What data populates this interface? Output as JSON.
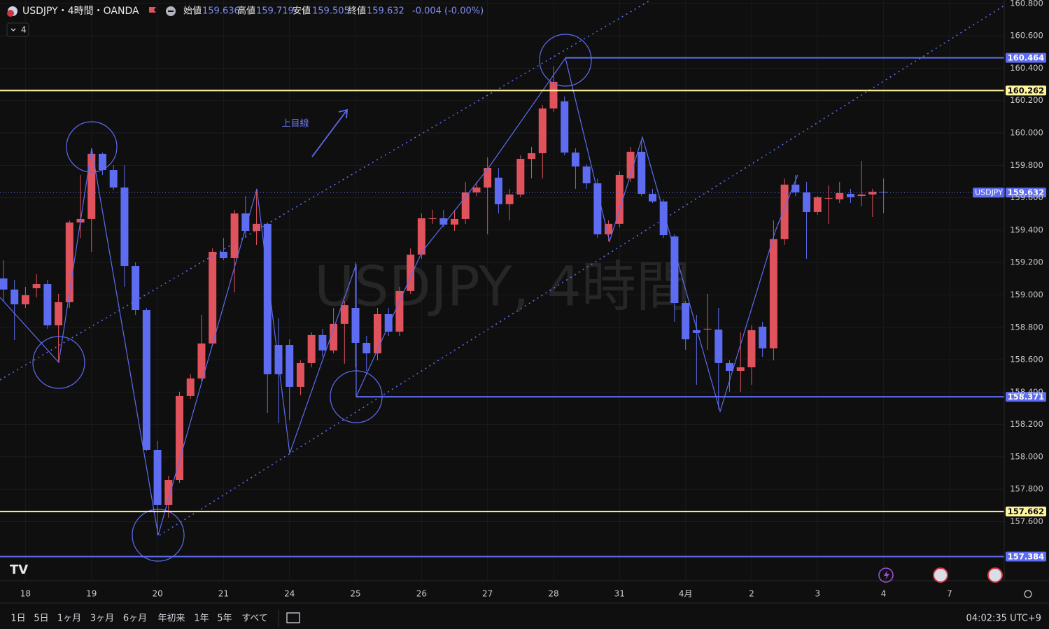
{
  "header": {
    "title": "USDJPY・4時間・OANDA",
    "interval_button": "4",
    "open_label": "始値",
    "high_label": "高値",
    "low_label": "安値",
    "close_label": "終値",
    "change": "-0.004 (-0.00%)"
  },
  "toolbar": {
    "ranges": [
      "1日",
      "5日",
      "1ヶ月",
      "3ヶ月",
      "6ヶ月",
      "年初来",
      "1年",
      "5年",
      "すべて"
    ],
    "clock": "04:02:35 UTC+9"
  },
  "chart_data": {
    "type": "candlestick",
    "symbol": "USDJPY",
    "watermark": "USDJPY, 4時間",
    "annotation": "上目線",
    "up_color": "#e0525c",
    "down_color": "#5d6cf0",
    "categories": [
      null,
      null,
      "18",
      null,
      null,
      null,
      null,
      null,
      "19",
      null,
      null,
      null,
      null,
      null,
      "20",
      null,
      null,
      null,
      null,
      null,
      "21",
      null,
      null,
      null,
      null,
      null,
      "24",
      null,
      null,
      null,
      null,
      null,
      "25",
      null,
      null,
      null,
      null,
      null,
      "26",
      null,
      null,
      null,
      null,
      null,
      "27",
      null,
      null,
      null,
      null,
      null,
      "28",
      null,
      null,
      null,
      null,
      null,
      "31",
      null,
      null,
      null,
      null,
      null,
      "4月",
      null,
      null,
      null,
      null,
      null,
      "2",
      null,
      null,
      null,
      null,
      null,
      "3",
      null,
      null,
      null,
      null,
      null,
      "4",
      null,
      null,
      null,
      null,
      null,
      "7"
    ],
    "open": [
      159.102,
      159.033,
      158.942,
      159.041,
      159.067,
      158.812,
      158.955,
      159.447,
      159.469,
      159.871,
      159.771,
      159.663,
      159.179,
      158.907,
      158.043,
      157.702,
      157.857,
      158.376,
      158.484,
      158.7,
      159.266,
      159.227,
      159.503,
      159.395,
      159.439,
      158.691,
      158.691,
      158.432,
      158.579,
      158.752,
      158.657,
      158.821,
      158.92,
      158.704,
      158.639,
      158.881,
      158.773,
      159.024,
      159.249,
      159.469,
      159.473,
      159.434,
      159.469,
      159.633,
      159.663,
      159.724,
      159.56,
      159.62,
      159.84,
      159.875,
      160.151,
      160.195,
      159.879,
      159.793,
      159.689,
      159.374,
      159.439,
      159.719,
      159.884,
      159.624,
      159.577,
      159.361,
      158.95,
      158.782,
      158.786,
      158.786,
      158.579,
      158.531,
      158.553,
      158.804,
      158.67,
      159.344,
      159.681,
      159.633,
      159.512,
      159.594,
      159.59,
      159.624,
      159.611,
      159.62,
      159.636,
      null,
      null,
      null,
      null,
      null,
      null
    ],
    "high": [
      159.214,
      159.093,
      159.05,
      159.128,
      159.093,
      159.007,
      159.46,
      159.741,
      159.905,
      159.879,
      159.801,
      159.801,
      159.201,
      158.92,
      158.099,
      157.883,
      158.402,
      158.51,
      158.877,
      159.287,
      159.352,
      159.525,
      159.611,
      159.655,
      159.447,
      158.855,
      158.726,
      158.596,
      158.769,
      158.791,
      158.92,
      158.963,
      159.201,
      158.747,
      158.92,
      158.92,
      159.05,
      159.287,
      159.503,
      159.525,
      159.525,
      159.525,
      159.698,
      159.698,
      159.849,
      159.784,
      159.655,
      159.862,
      159.914,
      160.173,
      160.411,
      160.225,
      159.905,
      159.806,
      159.719,
      159.46,
      159.763,
      159.914,
      159.957,
      159.655,
      159.59,
      159.374,
      158.963,
      158.877,
      159.007,
      158.92,
      158.596,
      158.769,
      158.812,
      158.834,
      159.46,
      159.719,
      159.741,
      159.698,
      159.611,
      159.676,
      159.698,
      159.655,
      159.827,
      159.655,
      159.719,
      null,
      null,
      null,
      null,
      null,
      null
    ],
    "low": [
      158.963,
      158.721,
      158.92,
      158.985,
      158.791,
      158.583,
      158.92,
      159.352,
      159.266,
      159.741,
      159.646,
      159.05,
      158.877,
      158.035,
      157.516,
      157.624,
      157.84,
      158.359,
      158.467,
      158.683,
      159.214,
      159.015,
      159.352,
      159.309,
      158.272,
      158.207,
      158.229,
      158.38,
      158.553,
      158.618,
      158.639,
      158.575,
      158.553,
      158.531,
      158.596,
      158.747,
      158.747,
      159.007,
      159.223,
      159.439,
      159.417,
      159.395,
      159.439,
      159.611,
      159.374,
      159.503,
      159.46,
      159.603,
      159.719,
      159.719,
      160.13,
      159.862,
      159.655,
      159.655,
      159.352,
      159.331,
      159.417,
      159.698,
      159.611,
      159.568,
      159.352,
      158.834,
      158.661,
      158.445,
      158.661,
      158.294,
      158.402,
      158.402,
      158.445,
      158.618,
      158.596,
      159.309,
      159.611,
      159.223,
      159.495,
      159.439,
      159.568,
      159.568,
      159.547,
      159.482,
      159.505,
      null,
      null,
      null,
      null,
      null,
      null
    ],
    "close": [
      159.033,
      158.942,
      158.998,
      159.067,
      158.812,
      158.955,
      159.447,
      159.469,
      159.871,
      159.771,
      159.663,
      159.179,
      158.907,
      158.043,
      157.702,
      157.857,
      158.376,
      158.484,
      158.7,
      159.266,
      159.227,
      159.503,
      159.395,
      159.439,
      158.51,
      158.51,
      158.432,
      158.579,
      158.752,
      158.657,
      158.821,
      158.937,
      158.704,
      158.639,
      158.881,
      158.773,
      159.024,
      159.249,
      159.473,
      159.473,
      159.434,
      159.469,
      159.633,
      159.663,
      159.784,
      159.56,
      159.62,
      159.84,
      159.875,
      160.151,
      160.316,
      159.879,
      159.793,
      159.689,
      159.374,
      159.439,
      159.741,
      159.884,
      159.624,
      159.577,
      159.369,
      158.95,
      158.726,
      158.765,
      158.791,
      158.579,
      158.531,
      158.553,
      158.782,
      158.67,
      159.344,
      159.681,
      159.633,
      159.512,
      159.603,
      159.598,
      159.629,
      159.603,
      159.62,
      159.637,
      159.632,
      null,
      null,
      null,
      null,
      null,
      null
    ],
    "ylim": [
      157.235,
      160.821
    ],
    "yticks": [
      {
        "value": 160.8,
        "label": "160.800"
      },
      {
        "value": 160.6,
        "label": "160.600"
      },
      {
        "value": 160.4,
        "label": "160.400"
      },
      {
        "value": 160.2,
        "label": "160.200"
      },
      {
        "value": 160,
        "label": "160.000"
      },
      {
        "value": 159.8,
        "label": "159.800"
      },
      {
        "value": 159.6,
        "label": "159.600"
      },
      {
        "value": 159.4,
        "label": "159.400"
      },
      {
        "value": 159.2,
        "label": "159.200"
      },
      {
        "value": 159,
        "label": "159.000"
      },
      {
        "value": 158.8,
        "label": "158.800"
      },
      {
        "value": 158.6,
        "label": "158.600"
      },
      {
        "value": 158.4,
        "label": "158.400"
      },
      {
        "value": 158.2,
        "label": "158.200"
      },
      {
        "value": 158,
        "label": "158.000"
      },
      {
        "value": 157.8,
        "label": "157.800"
      },
      {
        "value": 157.6,
        "label": "157.600"
      }
    ],
    "hlines": [
      {
        "value": 160.464,
        "label": "160.464",
        "color": "#5d6cf0"
      },
      {
        "value": 160.262,
        "label": "160.262",
        "color": "#fff59d"
      },
      {
        "value": 158.371,
        "label": "158.371",
        "color": "#5d6cf0"
      },
      {
        "value": 157.662,
        "label": "157.662",
        "color": "#fff59d"
      },
      {
        "value": 157.384,
        "label": "157.384",
        "color": "#5d6cf0"
      }
    ],
    "grid": true
  }
}
